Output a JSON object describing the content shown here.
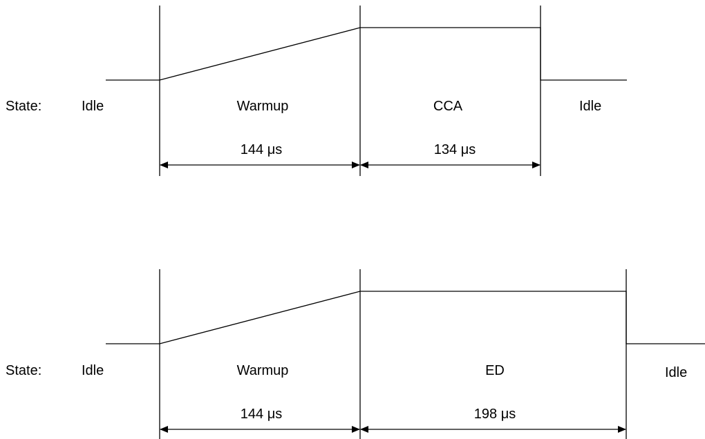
{
  "timing_diagrams": [
    {
      "state_label": "State:",
      "phases": [
        {
          "label": "Idle"
        },
        {
          "label": "Warmup",
          "duration": "144 μs"
        },
        {
          "label": "CCA",
          "duration": "134 μs"
        },
        {
          "label": "Idle"
        }
      ]
    },
    {
      "state_label": "State:",
      "phases": [
        {
          "label": "Idle"
        },
        {
          "label": "Warmup",
          "duration": "144 μs"
        },
        {
          "label": "ED",
          "duration": "198 μs"
        },
        {
          "label": "Idle"
        }
      ]
    }
  ]
}
